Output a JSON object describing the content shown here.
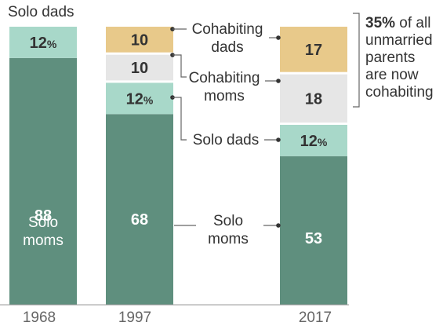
{
  "chart_data": {
    "type": "bar",
    "stacked": true,
    "categories": [
      "1968",
      "1997",
      "2017"
    ],
    "series": [
      {
        "key": "solo_moms",
        "values": [
          88,
          68,
          53
        ],
        "color": "#5f8f7e",
        "text_color": "#ffffff"
      },
      {
        "key": "solo_dads",
        "values": [
          12,
          12,
          12
        ],
        "color": "#a8d8c9",
        "text_color": "#333333"
      },
      {
        "key": "cohab_moms",
        "values": [
          null,
          10,
          18
        ],
        "color": "#e6e6e6",
        "text_color": "#333333"
      },
      {
        "key": "cohab_dads",
        "values": [
          null,
          10,
          17
        ],
        "color": "#e8c98a",
        "text_color": "#333333"
      }
    ],
    "value_labels": [
      [
        "88",
        "12%",
        null,
        null
      ],
      [
        "68",
        "12%",
        "10",
        "10"
      ],
      [
        "53",
        "12%",
        "18",
        "17"
      ]
    ],
    "labels": {
      "solo_dads_top": "Solo dads",
      "solo_moms_in_bar": [
        "Solo",
        "moms"
      ],
      "cohab_dads": [
        "Cohabiting",
        "dads"
      ],
      "cohab_moms": [
        "Cohabiting",
        "moms"
      ],
      "solo_dads": "Solo dads",
      "solo_moms": [
        "Solo",
        "moms"
      ]
    },
    "annotation": {
      "bold": "35%",
      "rest_first_line": " of all",
      "lines": [
        "unmarried",
        "parents",
        "are now",
        "cohabiting"
      ]
    }
  }
}
